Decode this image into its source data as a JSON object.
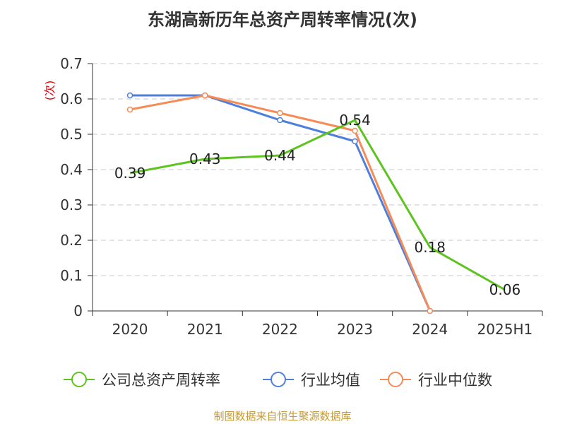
{
  "chart_data": {
    "type": "line",
    "title": "东湖高新历年总资产周转率情况(次)",
    "ylabel": "(次)",
    "xlabel": "",
    "categories": [
      "2020",
      "2021",
      "2022",
      "2023",
      "2024",
      "2025H1"
    ],
    "ylim": [
      0,
      0.7
    ],
    "yticks": [
      "0",
      "0.1",
      "0.2",
      "0.3",
      "0.4",
      "0.5",
      "0.6",
      "0.7"
    ],
    "grid": true,
    "legend_position": "bottom",
    "series": [
      {
        "name": "公司总资产周转率",
        "color": "#5dc41f",
        "values": [
          0.39,
          0.43,
          0.44,
          0.54,
          0.18,
          0.06
        ],
        "labels": [
          "0.39",
          "0.43",
          "0.44",
          "0.54",
          "0.18",
          "0.06"
        ]
      },
      {
        "name": "行业均值",
        "color": "#4f7fdc",
        "values": [
          0.61,
          0.61,
          0.54,
          0.48,
          0.0,
          null
        ]
      },
      {
        "name": "行业中位数",
        "color": "#f78b56",
        "values": [
          0.57,
          0.61,
          0.56,
          0.51,
          0.0,
          null
        ]
      }
    ]
  },
  "footer": {
    "source": "制图数据来自恒生聚源数据库"
  }
}
